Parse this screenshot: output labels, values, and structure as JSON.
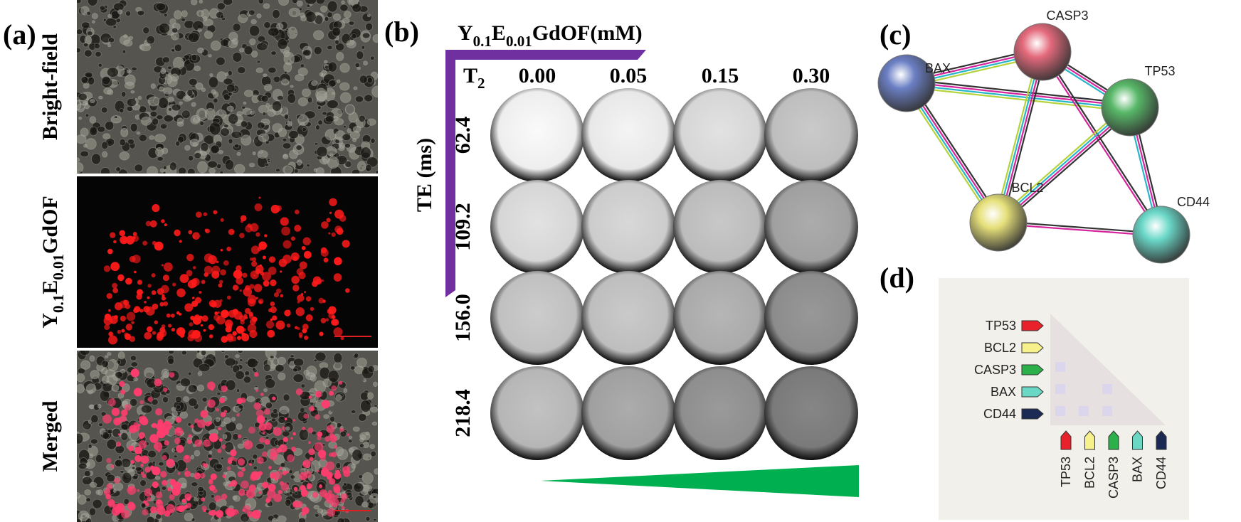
{
  "panel_a": {
    "label": "(a)",
    "rows": [
      [
        "Bright-field"
      ],
      [
        "Y",
        "0.1",
        "E",
        "0.01",
        "GdOF"
      ],
      [
        "Merged"
      ]
    ]
  },
  "panel_b": {
    "label": "(b)",
    "title": [
      "Y",
      "0.1",
      "E",
      "0.01",
      "GdOF(mM)"
    ],
    "corner": [
      "T",
      "2"
    ],
    "columns": [
      "0.00",
      "0.05",
      "0.15",
      "0.30"
    ],
    "axis_label": "TE (ms)",
    "rows": [
      "62.4",
      "109.2",
      "156.0",
      "218.4"
    ]
  },
  "panel_c": {
    "label": "(c)",
    "nodes": [
      "BAX",
      "CASP3",
      "TP53",
      "BCL2",
      "CD44"
    ]
  },
  "panel_d": {
    "label": "(d)",
    "rows": [
      "TP53",
      "BCL2",
      "CASP3",
      "BAX",
      "CD44"
    ],
    "columns": [
      "TP53",
      "BCL2",
      "CASP3",
      "BAX",
      "CD44"
    ]
  }
}
